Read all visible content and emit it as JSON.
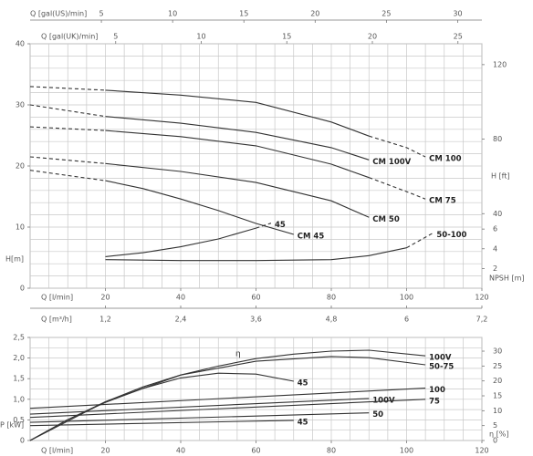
{
  "chart_data": [
    {
      "type": "line",
      "xlabel": "Q [l/min]",
      "xlim": [
        0,
        120
      ],
      "xticks": [
        20,
        40,
        60,
        80,
        100,
        120
      ],
      "x_axes": [
        {
          "label": "Q [gal(US)/min]",
          "xlim": [
            0,
            31.7
          ],
          "xticks": [
            5,
            10,
            15,
            20,
            25,
            30
          ]
        },
        {
          "label": "Q [gal(UK)/min]",
          "xlim": [
            0,
            26.4
          ],
          "xticks": [
            5,
            10,
            15,
            20,
            25
          ]
        },
        {
          "label": "Q [m³/h]",
          "xlim": [
            0,
            7.2
          ],
          "xticks": [
            {
              "value": 1.2,
              "label": "1,2"
            },
            {
              "value": 2.4,
              "label": "2,4"
            },
            {
              "value": 3.6,
              "label": "3,6"
            },
            {
              "value": 4.8,
              "label": "4,8"
            },
            6,
            {
              "value": 7.2,
              "label": "7,2"
            }
          ]
        }
      ],
      "ylabel": "H[m]",
      "ylim": [
        0,
        40
      ],
      "yticks": [
        0,
        10,
        20,
        30,
        40
      ],
      "y2label": "H [ft]",
      "y2lim": [
        0,
        131.2
      ],
      "y2ticks": [
        40,
        80,
        120
      ],
      "y3label": "NPSH [m]",
      "y3lim": [
        0,
        24.8
      ],
      "y3ticks": [
        2,
        4,
        6
      ],
      "grid_x": [
        0,
        5,
        10,
        15,
        20,
        25,
        30,
        35,
        40,
        45,
        50,
        55,
        60,
        65,
        70,
        75,
        80,
        85,
        90,
        95,
        100,
        105,
        110,
        115,
        120
      ],
      "grid_y": [
        0,
        2,
        4,
        6,
        8,
        10,
        12,
        14,
        16,
        18,
        20,
        22,
        24,
        26,
        28,
        30,
        32,
        34,
        36,
        38,
        40
      ],
      "color": "#333333",
      "series": [
        {
          "x": [
            0,
            20
          ],
          "values": [
            33.0,
            32.4
          ],
          "dashed": true
        },
        {
          "x": [
            20,
            40,
            60,
            80,
            90
          ],
          "values": [
            32.4,
            31.6,
            30.4,
            27.2,
            24.9
          ]
        },
        {
          "label": "CM 100",
          "x": [
            90,
            100,
            105
          ],
          "values": [
            24.9,
            23.0,
            21.5
          ],
          "dashed": true
        },
        {
          "x": [
            0,
            20
          ],
          "values": [
            30.0,
            28.1
          ],
          "dashed": true
        },
        {
          "label": "CM 100V",
          "x": [
            20,
            40,
            60,
            80,
            90
          ],
          "values": [
            28.1,
            27.0,
            25.5,
            23.0,
            21.0
          ]
        },
        {
          "x": [
            0,
            20
          ],
          "values": [
            26.4,
            25.8
          ],
          "dashed": true
        },
        {
          "x": [
            20,
            40,
            60,
            80,
            90
          ],
          "values": [
            25.8,
            24.8,
            23.3,
            20.3,
            18.1
          ]
        },
        {
          "label": "CM 75",
          "x": [
            90,
            100,
            105
          ],
          "values": [
            18.1,
            15.8,
            14.6
          ],
          "dashed": true
        },
        {
          "x": [
            0,
            20
          ],
          "values": [
            21.5,
            20.4
          ],
          "dashed": true
        },
        {
          "label": "CM 50",
          "x": [
            20,
            40,
            60,
            80,
            90
          ],
          "values": [
            20.4,
            19.1,
            17.3,
            14.3,
            11.6
          ]
        },
        {
          "x": [
            0,
            20
          ],
          "values": [
            19.3,
            17.6
          ],
          "dashed": true
        },
        {
          "label": "CM 45",
          "x": [
            20,
            30,
            40,
            50,
            60,
            70
          ],
          "values": [
            17.6,
            16.3,
            14.6,
            12.7,
            10.6,
            8.8
          ]
        },
        {
          "axis": "y3",
          "x": [
            20,
            30,
            40,
            50,
            60
          ],
          "values": [
            3.2,
            3.6,
            4.2,
            5.0,
            6.1
          ]
        },
        {
          "axis": "y3",
          "label": "45",
          "x": [
            60,
            64
          ],
          "values": [
            6.1,
            6.6
          ],
          "dashed": true
        },
        {
          "axis": "y3",
          "x": [
            20,
            40,
            60,
            80,
            90,
            100
          ],
          "values": [
            2.9,
            2.8,
            2.8,
            2.9,
            3.3,
            4.1
          ]
        },
        {
          "axis": "y3",
          "label": "50-100",
          "x": [
            100,
            107
          ],
          "values": [
            4.1,
            5.6
          ],
          "dashed": true
        }
      ]
    },
    {
      "type": "line",
      "xlabel": "Q [l/min]",
      "xlim": [
        0,
        120
      ],
      "xticks": [
        20,
        40,
        60,
        80,
        100,
        120
      ],
      "ylabel": "P [kW]",
      "ylim": [
        0,
        2.5
      ],
      "yticks": [
        0,
        {
          "value": 0.5,
          "label": "0,5"
        },
        {
          "value": 1,
          "label": "1,0"
        },
        {
          "value": 1.5,
          "label": "1,5"
        },
        {
          "value": 2,
          "label": "2,0"
        },
        {
          "value": 2.5,
          "label": "2,5"
        }
      ],
      "y2label": "η [%]",
      "y2lim": [
        0,
        34.6
      ],
      "y2ticks": [
        0,
        5,
        10,
        15,
        20,
        25,
        30
      ],
      "annotation": "η",
      "grid_x": [
        0,
        5,
        10,
        15,
        20,
        25,
        30,
        35,
        40,
        45,
        50,
        55,
        60,
        65,
        70,
        75,
        80,
        85,
        90,
        95,
        100,
        105,
        110,
        115,
        120
      ],
      "grid_y": [
        0,
        0.25,
        0.5,
        0.75,
        1,
        1.25,
        1.5,
        1.75,
        2,
        2.25,
        2.5
      ],
      "color": "#333333",
      "series": [
        {
          "axis": "y2",
          "label": "100V",
          "x": [
            0,
            10,
            20,
            30,
            40,
            50,
            60,
            70,
            80,
            90,
            105
          ],
          "values": [
            0,
            7,
            13,
            18,
            22,
            25,
            27.5,
            29,
            30,
            30.3,
            28.4
          ]
        },
        {
          "axis": "y2",
          "label": "50-75",
          "x": [
            0,
            20,
            40,
            60,
            80,
            90,
            105
          ],
          "values": [
            0,
            13,
            22,
            26.6,
            28.2,
            27.8,
            25.4
          ]
        },
        {
          "axis": "y2",
          "label": "45",
          "x": [
            0,
            10,
            20,
            30,
            40,
            50,
            60,
            70
          ],
          "values": [
            0,
            7,
            12.8,
            17.5,
            21,
            22.6,
            22.3,
            19.9
          ]
        },
        {
          "label": "100",
          "x": [
            0,
            105
          ],
          "values": [
            0.78,
            1.27
          ]
        },
        {
          "label": "100V",
          "x": [
            0,
            90
          ],
          "values": [
            0.64,
            1.02
          ]
        },
        {
          "label": "75",
          "x": [
            0,
            105
          ],
          "values": [
            0.56,
            1.0
          ]
        },
        {
          "label": "50",
          "x": [
            0,
            90
          ],
          "values": [
            0.44,
            0.67
          ]
        },
        {
          "label": "45",
          "x": [
            0,
            70
          ],
          "values": [
            0.36,
            0.49
          ]
        }
      ]
    }
  ]
}
